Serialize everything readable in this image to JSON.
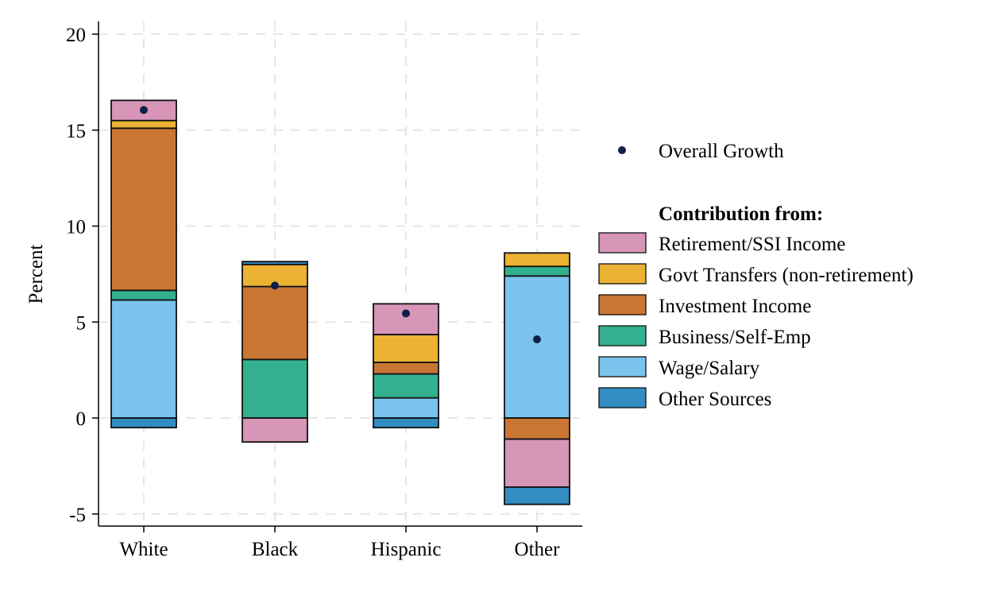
{
  "chart_data": {
    "type": "bar",
    "stacked": true,
    "title": "",
    "xlabel": "",
    "ylabel": "Percent",
    "ylim": [
      -5,
      20
    ],
    "yticks": [
      -5,
      0,
      5,
      10,
      15,
      20
    ],
    "grid": true,
    "legend_position": "right",
    "categories": [
      "White",
      "Black",
      "Hispanic",
      "Other"
    ],
    "legend_heading": "Contribution from:",
    "series": [
      {
        "name": "Wage/Salary",
        "color": "#7ac3ec",
        "values": [
          6.15,
          0,
          1.05,
          7.4
        ]
      },
      {
        "name": "Business/Self-Emp",
        "color": "#33b08f",
        "values": [
          0.5,
          3.05,
          1.25,
          0.5
        ]
      },
      {
        "name": "Investment Income",
        "color": "#c97634",
        "values": [
          8.45,
          3.8,
          0.6,
          -1.1
        ]
      },
      {
        "name": "Govt Transfers (non-retirement)",
        "color": "#ebb234",
        "values": [
          0.4,
          1.15,
          1.45,
          0.7
        ]
      },
      {
        "name": "Retirement/SSI Income",
        "color": "#d795b8",
        "values": [
          1.05,
          -1.25,
          1.6,
          -2.5
        ]
      },
      {
        "name": "Other Sources",
        "color": "#338cc2",
        "values": [
          -0.5,
          0.15,
          -0.5,
          -0.9
        ]
      }
    ],
    "legend_order": [
      "Retirement/SSI Income",
      "Govt Transfers (non-retirement)",
      "Investment Income",
      "Business/Self-Emp",
      "Wage/Salary",
      "Other Sources"
    ],
    "overall": {
      "name": "Overall Growth",
      "color": "#0d1f4a",
      "values": [
        16.05,
        6.9,
        5.45,
        4.1
      ]
    }
  }
}
